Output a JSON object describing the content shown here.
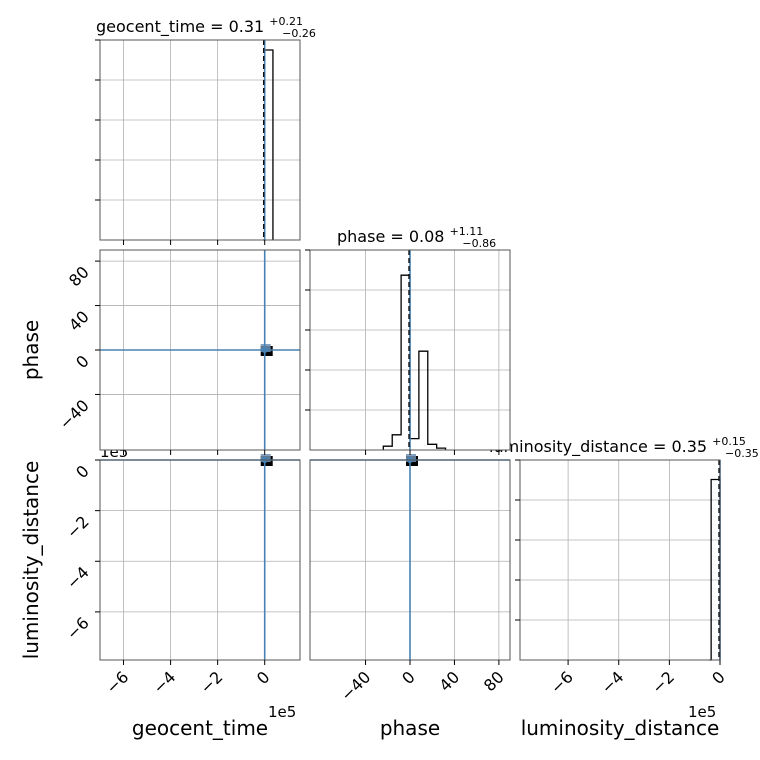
{
  "chart_data": {
    "type": "corner",
    "parameters": [
      "geocent_time",
      "phase",
      "luminosity_distance"
    ],
    "titles": {
      "geocent_time": {
        "prefix": "geocent_time = ",
        "median": "0.31",
        "plus": "+0.21",
        "minus": "−0.26"
      },
      "phase": {
        "prefix": "phase = ",
        "median": "0.08",
        "plus": "+1.11",
        "minus": "−0.86"
      },
      "luminosity_distance": {
        "prefix": "luminosity_distance = ",
        "median": "0.35",
        "plus": "+0.15",
        "minus": "−0.35"
      }
    },
    "axis_labels": {
      "geocent_time": "geocent_time",
      "phase": "phase",
      "luminosity_distance": "luminosity_distance"
    },
    "offset_text": "1e5",
    "ranges": {
      "geocent_time": [
        -7.0,
        1.5
      ],
      "phase": [
        -90,
        90
      ],
      "luminosity_distance": [
        -7.9,
        0.0
      ]
    },
    "ticks": {
      "geocent_time": [
        -6,
        -4,
        -2,
        0
      ],
      "phase": [
        -40,
        0,
        40,
        80
      ],
      "phase_y": [
        -40,
        0,
        40,
        80
      ],
      "luminosity_distance": [
        -6,
        -4,
        -2,
        0
      ]
    },
    "tick_labels": {
      "geocent_time": [
        "−6",
        "−4",
        "−2",
        "0"
      ],
      "phase": [
        "−40",
        "0",
        "40",
        "80"
      ],
      "phase_y": [
        "−40",
        "0",
        "40",
        "80"
      ],
      "luminosity_distance": [
        "−6",
        "−4",
        "−2",
        "0"
      ]
    },
    "truths": {
      "geocent_time": 0.0,
      "phase": 0.0,
      "luminosity_distance": 0.0
    },
    "truth_color": "#4682b4",
    "hist_color": "#000000",
    "quantile_line_style": "dashed",
    "hist_1d": {
      "geocent_time": {
        "edges": [
          -0.07,
          0.0,
          0.35
        ],
        "heights": [
          0.0,
          1.0
        ]
      },
      "phase": {
        "edges": [
          -24,
          -16,
          -8,
          0,
          8,
          16,
          24,
          32
        ],
        "heights": [
          0.02,
          0.08,
          0.92,
          0.06,
          0.52,
          0.03,
          0.01
        ]
      },
      "luminosity_distance": {
        "edges": [
          -0.42,
          -0.35,
          0.0
        ],
        "heights": [
          0.0,
          0.95
        ]
      }
    },
    "grid": true
  }
}
